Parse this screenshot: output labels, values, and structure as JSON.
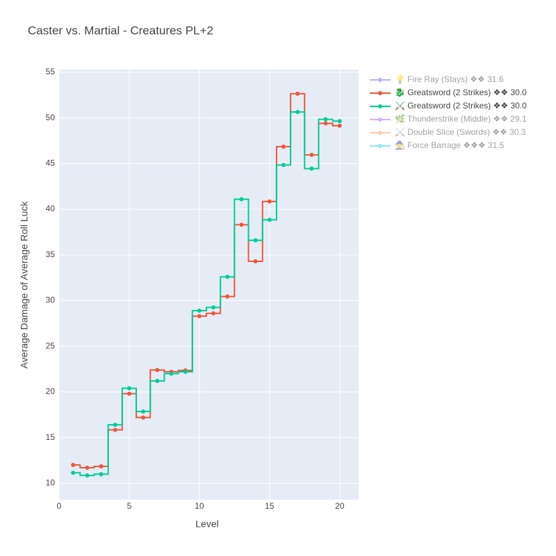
{
  "chart_data": {
    "type": "line",
    "line_shape": "hvh",
    "title": "Caster vs. Martial - Creatures PL+2",
    "x_label": "Level",
    "y_label": "Average Damage of Average Roll Luck",
    "x": [
      1,
      2,
      3,
      4,
      5,
      6,
      7,
      8,
      9,
      10,
      11,
      12,
      13,
      14,
      15,
      16,
      17,
      18,
      19,
      20
    ],
    "xlim": [
      0,
      21.35
    ],
    "xticks": [
      0,
      5,
      10,
      15,
      20
    ],
    "ylim": [
      8.2,
      55.3
    ],
    "yticks": [
      10,
      15,
      20,
      25,
      30,
      35,
      40,
      45,
      50,
      55
    ],
    "grid": true,
    "legend": "right",
    "series": [
      {
        "name": "💡 Fire Ray (Stays) ❖❖ 31.6",
        "color": "#636efa",
        "visible": "legendonly"
      },
      {
        "name": "🐉 Greatsword (2 Strikes) ❖❖ 30.0",
        "color": "#ef553b",
        "visible": true,
        "values": [
          12.0,
          11.7,
          11.85,
          15.85,
          19.8,
          17.2,
          22.4,
          22.2,
          22.35,
          28.3,
          28.6,
          30.45,
          38.3,
          34.3,
          40.85,
          46.85,
          52.65,
          45.95,
          49.4,
          49.15
        ]
      },
      {
        "name": "⚔️ Greatsword (2 Strikes) ❖❖ 30.0",
        "color": "#00cc96",
        "visible": true,
        "values": [
          11.15,
          10.85,
          11.0,
          16.4,
          20.4,
          17.85,
          21.2,
          22.0,
          22.2,
          28.9,
          29.25,
          32.6,
          41.1,
          36.6,
          38.85,
          44.85,
          50.65,
          44.45,
          49.85,
          49.65
        ]
      },
      {
        "name": "🌿 Thunderstrike (Middle) ❖❖ 29.1",
        "color": "#ab63fa",
        "visible": "legendonly"
      },
      {
        "name": "⚔️ Double Slice (Swords) ❖❖ 30.3",
        "color": "#ffa15a",
        "visible": "legendonly"
      },
      {
        "name": "🧙 Force Barrage ❖❖❖ 31.5",
        "color": "#19d3f3",
        "visible": "legendonly"
      }
    ]
  }
}
